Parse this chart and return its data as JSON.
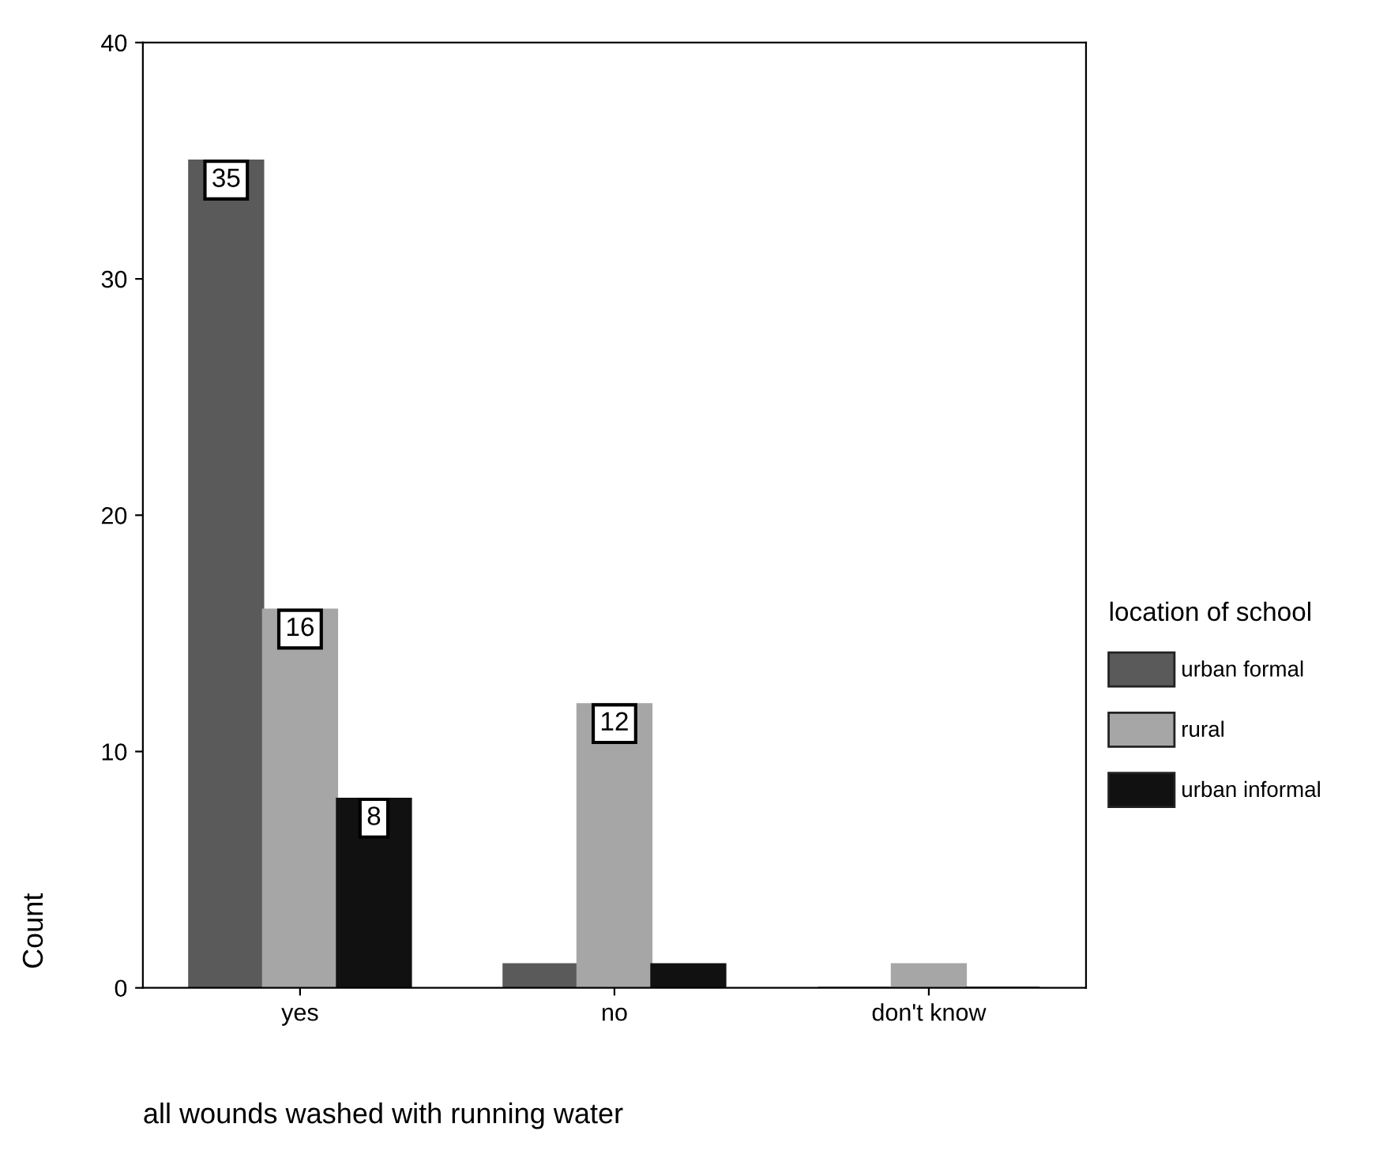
{
  "chart_data": {
    "type": "bar",
    "xlabel": "all wounds washed with running water",
    "ylabel": "Count",
    "legend_title": "location of school",
    "categories": [
      "yes",
      "no",
      "don't know"
    ],
    "series": [
      {
        "name": "urban formal",
        "color": "#5a5a5a",
        "values": [
          35,
          1,
          0
        ],
        "value_labels": [
          "35",
          null,
          null
        ]
      },
      {
        "name": "rural",
        "color": "#a6a6a6",
        "values": [
          16,
          12,
          1
        ],
        "value_labels": [
          "16",
          "12",
          null
        ]
      },
      {
        "name": "urban informal",
        "color": "#111111",
        "values": [
          8,
          1,
          0
        ],
        "value_labels": [
          "8",
          null,
          null
        ]
      }
    ],
    "ylim": [
      0,
      40
    ],
    "yticks": [
      0,
      10,
      20,
      30,
      40
    ],
    "grid": false,
    "legend": "right"
  }
}
